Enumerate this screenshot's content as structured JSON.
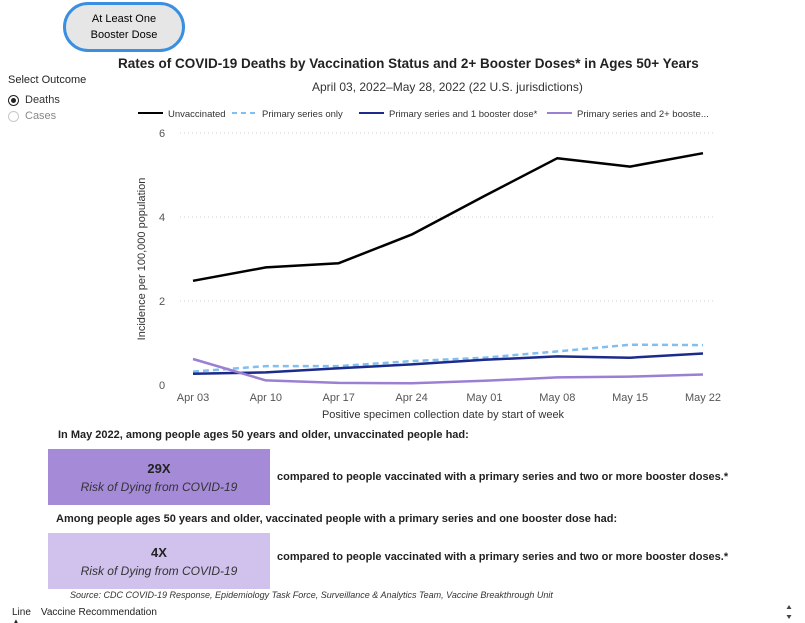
{
  "toggle_button": {
    "line1": "At Least One",
    "line2": "Booster Dose"
  },
  "outcome": {
    "title": "Select Outcome",
    "options": [
      {
        "label": "Deaths",
        "selected": true
      },
      {
        "label": "Cases",
        "selected": false
      }
    ]
  },
  "chart_data": {
    "type": "line",
    "title": "Rates of COVID-19 Deaths by Vaccination Status and 2+ Booster Doses* in Ages 50+ Years",
    "subtitle": "April 03, 2022–May 28, 2022 (22 U.S. jurisdictions)",
    "xlabel": "Positive specimen collection date by start of week",
    "ylabel": "Incidence per 100,000 population",
    "categories": [
      "Apr 03",
      "Apr 10",
      "Apr 17",
      "Apr 24",
      "May 01",
      "May 08",
      "May 15",
      "May 22"
    ],
    "yticks": [
      "0",
      "2",
      "4",
      "6"
    ],
    "ylim": [
      0,
      6
    ],
    "grid": true,
    "series": [
      {
        "name": "Unvaccinated",
        "color": "#000000",
        "dash": false,
        "values": [
          2.48,
          2.8,
          2.9,
          3.58,
          4.5,
          5.4,
          5.2,
          5.52
        ]
      },
      {
        "name": "Primary series only",
        "color": "#80bff0",
        "dash": true,
        "values": [
          0.32,
          0.45,
          0.45,
          0.57,
          0.65,
          0.8,
          0.96,
          0.95
        ]
      },
      {
        "name": "Primary series and 1 booster dose*",
        "color": "#1c2a8c",
        "dash": false,
        "values": [
          0.27,
          0.3,
          0.4,
          0.49,
          0.6,
          0.68,
          0.65,
          0.75
        ]
      },
      {
        "name": "Primary series and 2+ booste...",
        "color": "#9b7fd3",
        "dash": false,
        "values": [
          0.62,
          0.11,
          0.05,
          0.04,
          0.1,
          0.18,
          0.2,
          0.25
        ]
      }
    ]
  },
  "summary": {
    "line1": "In May 2022, among people ages 50 years and older, unvaccinated people had:",
    "box1_value": "29X",
    "box1_label": "Risk of Dying from COVID-19",
    "compare1": "compared to people vaccinated with a primary series and two or more booster doses.*",
    "line2": "Among people ages 50 years and older, vaccinated people with a primary series and one booster dose had:",
    "box2_value": "4X",
    "box2_label": "Risk of Dying from COVID-19",
    "compare2": "compared to people vaccinated with a primary series and two or more booster doses.*",
    "box1_color": "#a58ad8",
    "box2_color": "#d0c2ec"
  },
  "source": "Source: CDC COVID-19 Response, Epidemiology Task Force, Surveillance & Analytics Team, Vaccine Breakthrough Unit",
  "tabs": [
    "Line",
    "Vaccine Recommendation"
  ]
}
